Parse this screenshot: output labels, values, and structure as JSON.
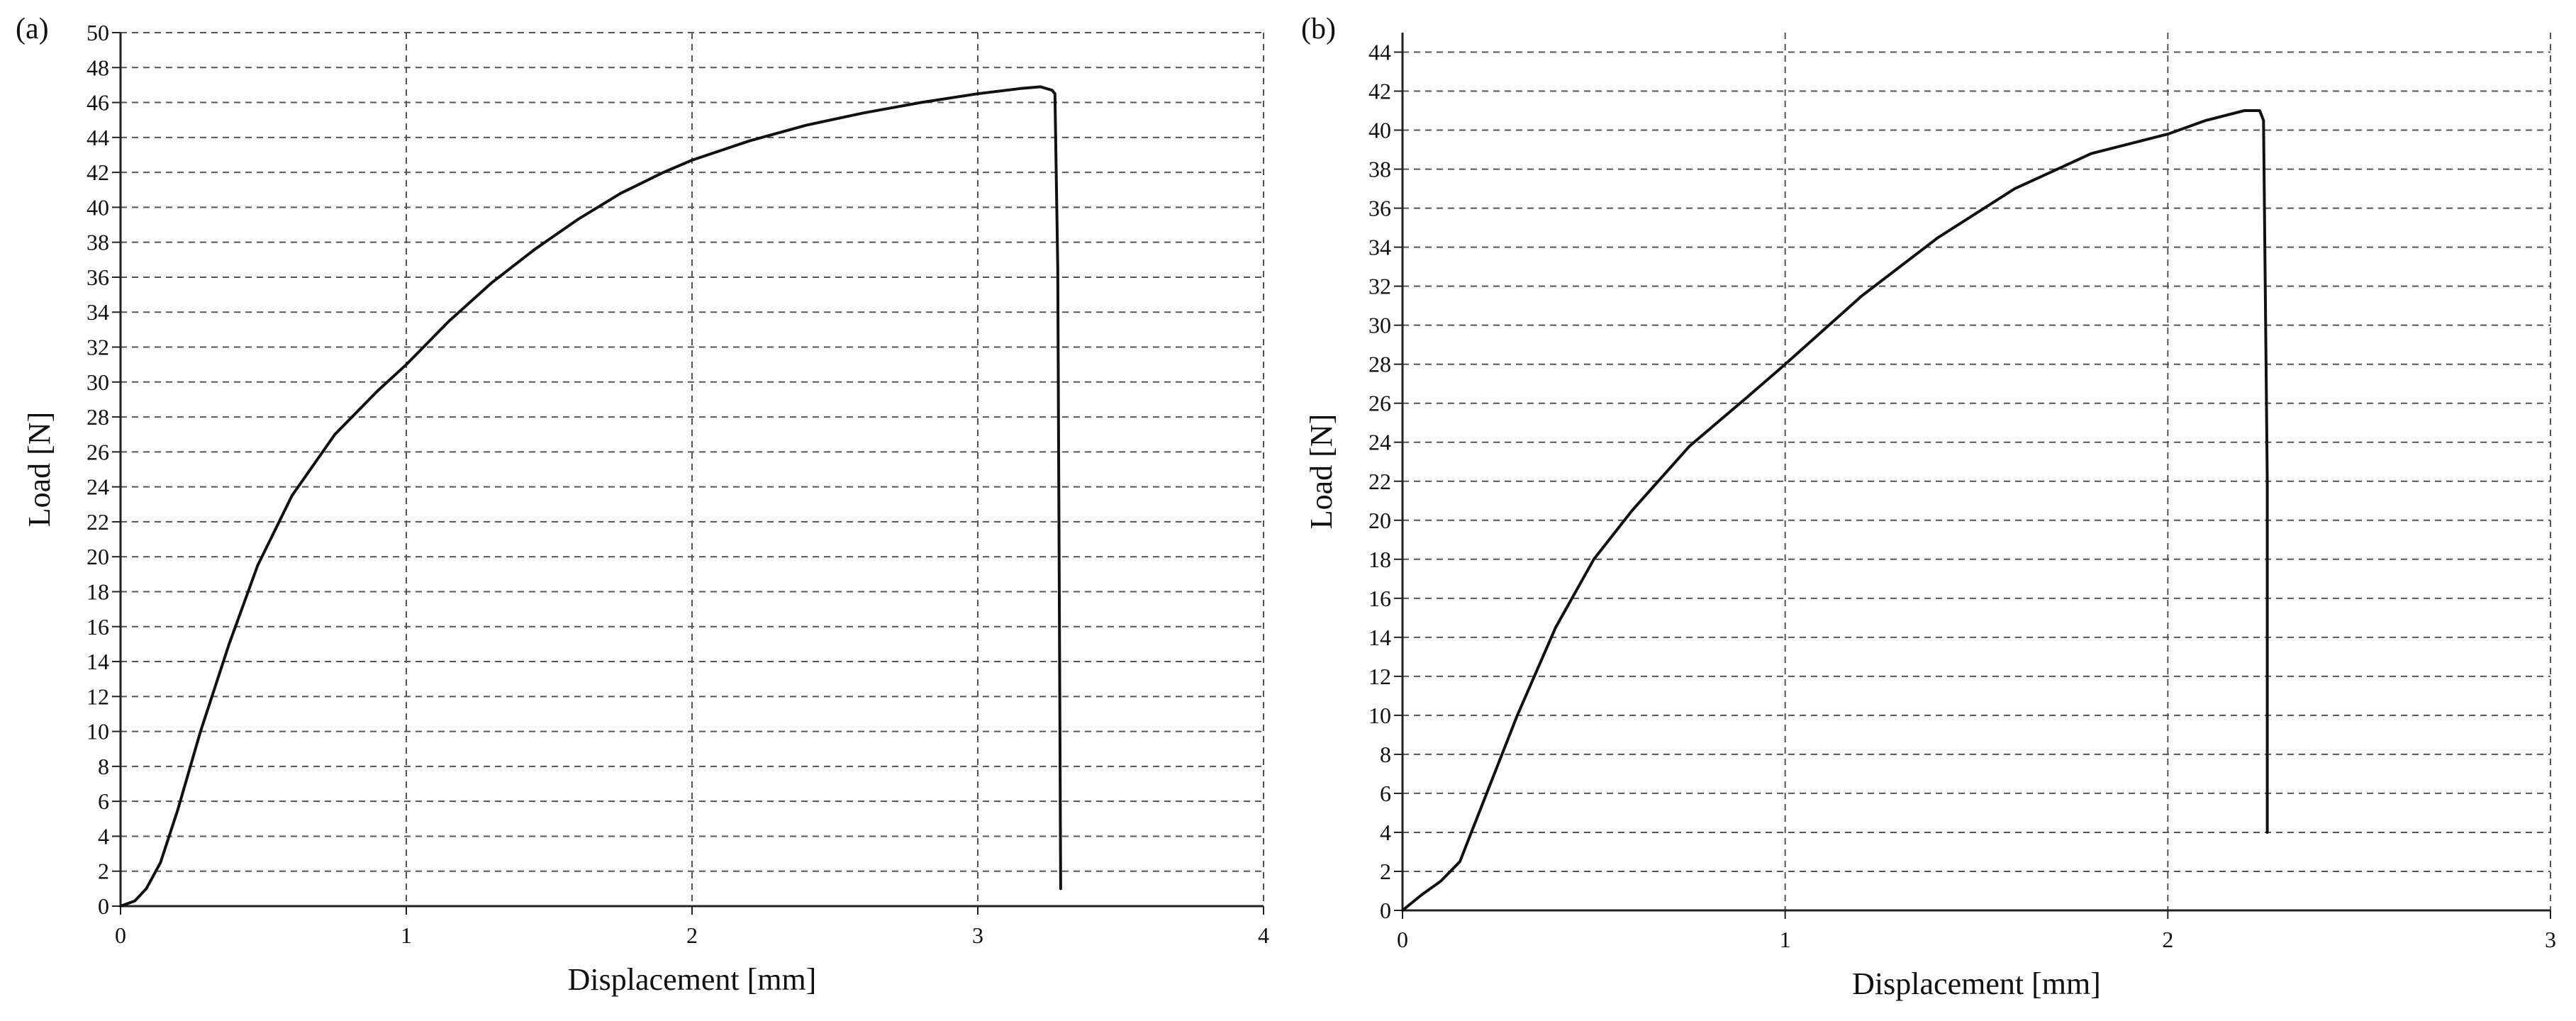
{
  "chart_data": [
    {
      "panel_label": "(a)",
      "type": "line",
      "xlabel": "Displacement [mm]",
      "ylabel": "Load [N]",
      "xlim": [
        0,
        4
      ],
      "ylim": [
        0,
        50
      ],
      "xticks": [
        0,
        1,
        2,
        3,
        4
      ],
      "yticks": [
        0,
        2,
        4,
        6,
        8,
        10,
        12,
        14,
        16,
        18,
        20,
        22,
        24,
        26,
        28,
        30,
        32,
        34,
        36,
        38,
        40,
        42,
        44,
        46,
        48,
        50
      ],
      "grid": true,
      "line_color": "#111111",
      "series": [
        {
          "x": [
            0,
            0.05,
            0.09,
            0.14,
            0.2,
            0.28,
            0.38,
            0.48,
            0.6,
            0.75,
            0.9,
            1.0,
            1.15,
            1.3,
            1.45,
            1.6,
            1.75,
            1.9,
            2.0,
            2.2,
            2.4,
            2.6,
            2.8,
            3.0,
            3.15,
            3.22,
            3.26,
            3.27,
            3.28,
            3.28,
            3.29
          ],
          "y": [
            0,
            0.3,
            1.0,
            2.5,
            5.5,
            10.0,
            15.0,
            19.5,
            23.5,
            27.0,
            29.5,
            31.0,
            33.5,
            35.7,
            37.6,
            39.3,
            40.8,
            42.0,
            42.7,
            43.8,
            44.7,
            45.4,
            46.0,
            46.5,
            46.8,
            46.9,
            46.7,
            46.5,
            36.5,
            36.5,
            1.0
          ]
        }
      ]
    },
    {
      "panel_label": "(b)",
      "type": "line",
      "xlabel": "Displacement [mm]",
      "ylabel": "Load [N]",
      "xlim": [
        0,
        3
      ],
      "ylim": [
        0,
        45
      ],
      "xticks": [
        0,
        1,
        2,
        3
      ],
      "yticks": [
        0,
        2,
        4,
        6,
        8,
        10,
        12,
        14,
        16,
        18,
        20,
        22,
        24,
        26,
        28,
        30,
        32,
        34,
        36,
        38,
        40,
        42,
        44
      ],
      "grid": true,
      "line_color": "#111111",
      "series": [
        {
          "x": [
            0,
            0.05,
            0.1,
            0.15,
            0.2,
            0.3,
            0.4,
            0.5,
            0.6,
            0.75,
            0.9,
            1.0,
            1.2,
            1.4,
            1.6,
            1.8,
            2.0,
            2.1,
            2.2,
            2.24,
            2.25,
            2.26,
            2.26
          ],
          "y": [
            0,
            0.8,
            1.5,
            2.5,
            5.0,
            10.0,
            14.5,
            18.0,
            20.5,
            23.8,
            26.3,
            28.0,
            31.5,
            34.5,
            37.0,
            38.8,
            39.8,
            40.5,
            41.0,
            41.0,
            40.5,
            22.0,
            4.0
          ]
        }
      ]
    }
  ]
}
